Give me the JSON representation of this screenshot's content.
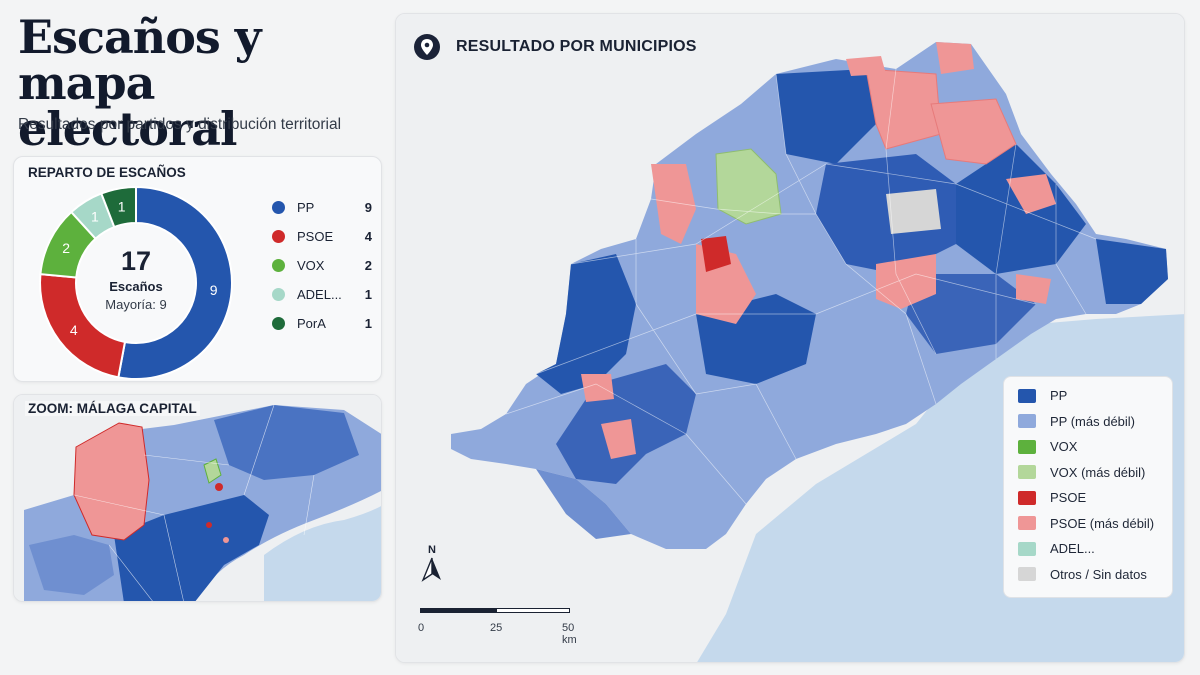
{
  "header": {
    "title": "Escaños y mapa electoral",
    "subtitle": "Resultados por partidos y distribución territorial"
  },
  "seats_panel": {
    "title": "REPARTO DE ESCAÑOS"
  },
  "zoom_panel": {
    "title": "ZOOM: MÁLAGA CAPITAL"
  },
  "map_panel": {
    "title": "RESULTADO POR MUNICIPIOS",
    "north_label": "N",
    "scale_labels": [
      "0",
      "25",
      "50 km"
    ]
  },
  "colors": {
    "pp": "#2456ad",
    "pp_weak": "#8fa9dc",
    "vox": "#5db13d",
    "vox_weak": "#b3d79a",
    "psoe": "#cf2a2a",
    "psoe_weak": "#ef9696",
    "adel": "#a6d8c8",
    "otros": "#d6d6d6",
    "pora": "#1e6b3a",
    "sea": "#c5d9ec",
    "land": "#eef0f2"
  },
  "chart_data": [
    {
      "type": "pie",
      "title": "REPARTO DE ESCAÑOS",
      "donut": true,
      "center_value": "17",
      "center_label": "Escaños",
      "center_sub": "Mayoría: 9",
      "series": [
        {
          "name": "PP",
          "value": 9,
          "color": "#2456ad"
        },
        {
          "name": "PSOE",
          "value": 4,
          "color": "#cf2a2a"
        },
        {
          "name": "VOX",
          "value": 2,
          "color": "#5db13d"
        },
        {
          "name": "ADEL...",
          "value": 1,
          "color": "#a6d8c8"
        },
        {
          "name": "PorA",
          "value": 1,
          "color": "#1e6b3a"
        }
      ],
      "legend_placement": "right"
    },
    {
      "type": "heatmap",
      "title": "RESULTADO POR MUNICIPIOS",
      "legend": [
        {
          "label": "PP",
          "color": "#2456ad"
        },
        {
          "label": "PP (más débil)",
          "color": "#8fa9dc"
        },
        {
          "label": "VOX",
          "color": "#5db13d"
        },
        {
          "label": "VOX (más débil)",
          "color": "#b3d79a"
        },
        {
          "label": "PSOE",
          "color": "#cf2a2a"
        },
        {
          "label": "PSOE (más débil)",
          "color": "#ef9696"
        },
        {
          "label": "ADEL...",
          "color": "#a6d8c8"
        },
        {
          "label": "Otros / Sin datos",
          "color": "#d6d6d6"
        }
      ],
      "legend_placement": "bottom-right"
    }
  ]
}
